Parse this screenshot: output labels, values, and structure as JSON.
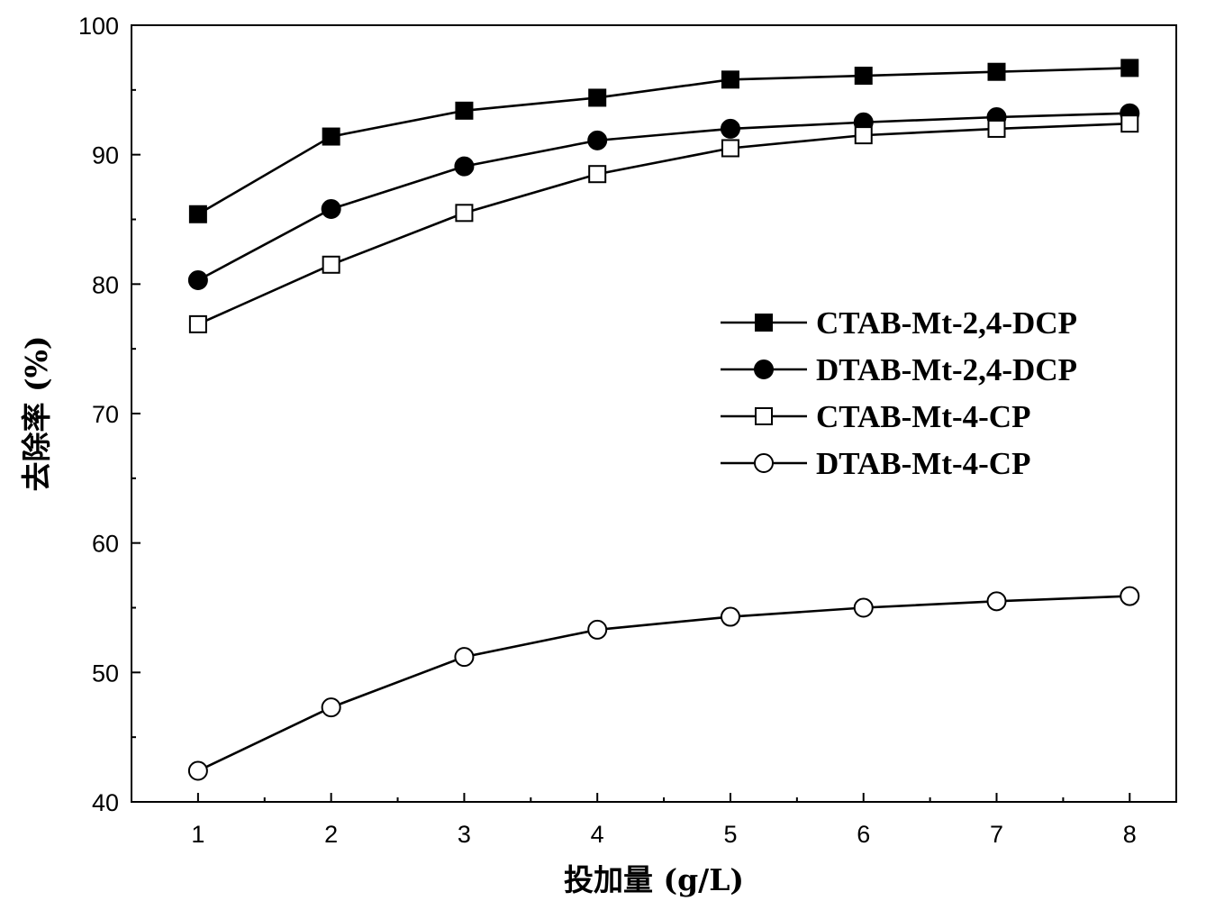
{
  "chart_data": {
    "type": "line",
    "title": "",
    "xlabel": "投加量 (g/L)",
    "ylabel": "去除率 (%)",
    "x": [
      1,
      2,
      3,
      4,
      5,
      6,
      7,
      8
    ],
    "xlim": [
      0.5,
      8.35
    ],
    "ylim": [
      40,
      100
    ],
    "x_ticks": [
      "1",
      "2",
      "3",
      "4",
      "5",
      "6",
      "7",
      "8"
    ],
    "y_ticks": [
      "40",
      "50",
      "60",
      "70",
      "80",
      "90",
      "100"
    ],
    "grid": false,
    "legend_position": "center-right",
    "series": [
      {
        "name": "CTAB-Mt-2,4-DCP",
        "marker": "square-filled",
        "color": "#000000",
        "values": [
          85.4,
          91.4,
          93.4,
          94.4,
          95.8,
          96.1,
          96.4,
          96.7
        ]
      },
      {
        "name": "DTAB-Mt-2,4-DCP",
        "marker": "circle-filled",
        "color": "#000000",
        "values": [
          80.3,
          85.8,
          89.1,
          91.1,
          92.0,
          92.5,
          92.9,
          93.2
        ]
      },
      {
        "name": "CTAB-Mt-4-CP",
        "marker": "square-open",
        "color": "#000000",
        "values": [
          76.9,
          81.5,
          85.5,
          88.5,
          90.5,
          91.5,
          92.0,
          92.4
        ]
      },
      {
        "name": "DTAB-Mt-4-CP",
        "marker": "circle-open",
        "color": "#000000",
        "values": [
          42.4,
          47.3,
          51.2,
          53.3,
          54.3,
          55.0,
          55.5,
          55.9
        ]
      }
    ]
  }
}
